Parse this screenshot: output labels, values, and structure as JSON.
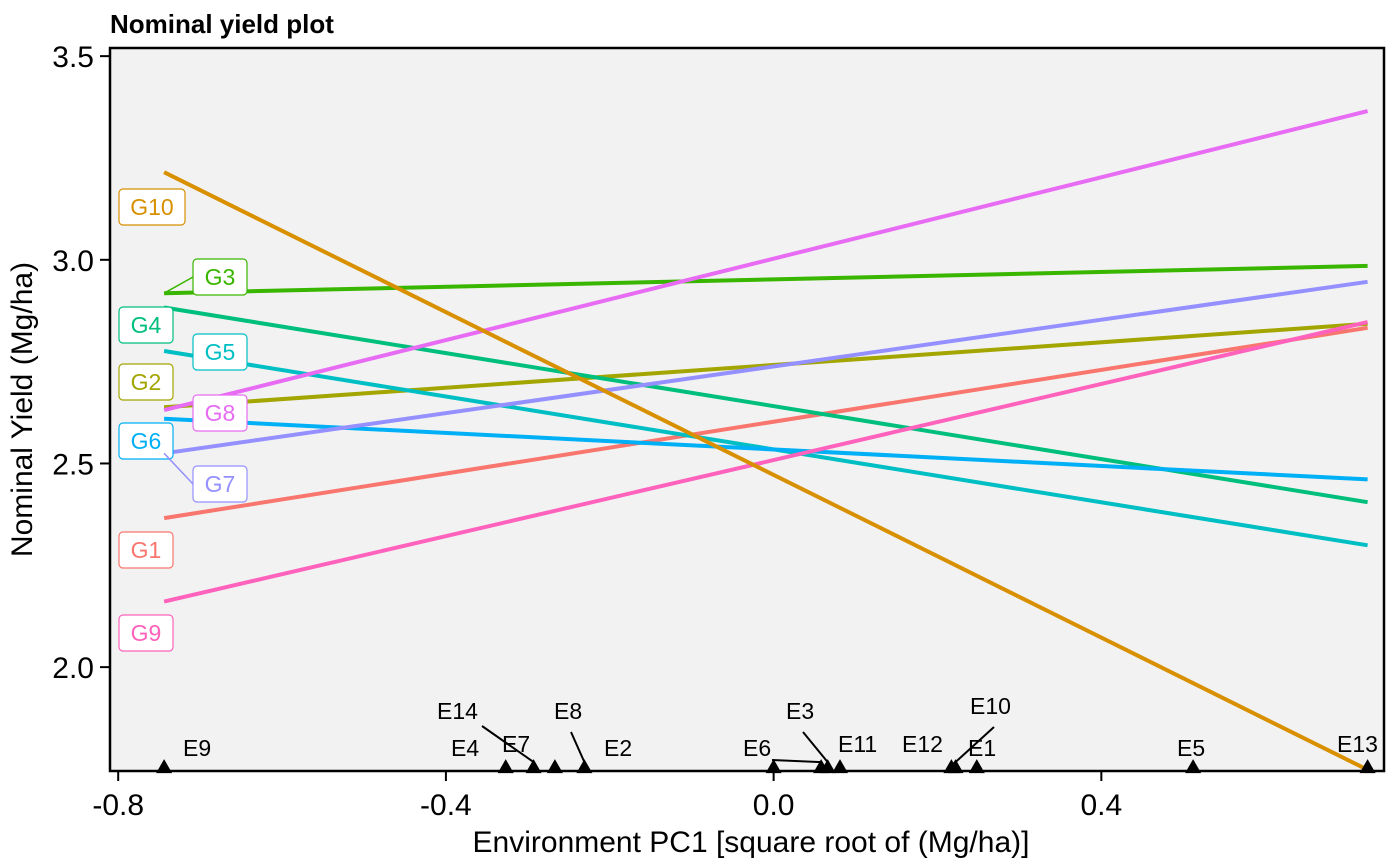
{
  "chart_data": {
    "type": "line",
    "title": "Nominal yield plot",
    "xlabel": "Environment PC1 [square root of  (Mg/ha)]",
    "ylabel": "Nominal Yield (Mg/ha)",
    "xlim": [
      -0.81,
      0.745
    ],
    "ylim": [
      1.745,
      3.52
    ],
    "x_ticks": [
      -0.8,
      -0.4,
      0.0,
      0.4
    ],
    "x_tick_labels": [
      "-0.8",
      "-0.4",
      "0.0",
      "0.4"
    ],
    "y_ticks": [
      2.0,
      2.5,
      3.0,
      3.5
    ],
    "y_tick_labels": [
      "2.0",
      "2.5",
      "3.0",
      "3.5"
    ],
    "grid": false,
    "series": [
      {
        "name": "G1",
        "color": "#F8766D",
        "x": [
          -0.744,
          0.725
        ],
        "y": [
          2.366,
          2.833
        ]
      },
      {
        "name": "G2",
        "color": "#A3A500",
        "x": [
          -0.744,
          0.725
        ],
        "y": [
          2.638,
          2.843
        ]
      },
      {
        "name": "G3",
        "color": "#39B600",
        "x": [
          -0.744,
          0.725
        ],
        "y": [
          2.918,
          2.985
        ]
      },
      {
        "name": "G4",
        "color": "#00BF7D",
        "x": [
          -0.744,
          0.725
        ],
        "y": [
          2.883,
          2.405
        ]
      },
      {
        "name": "G5",
        "color": "#00BFC4",
        "x": [
          -0.744,
          0.725
        ],
        "y": [
          2.776,
          2.299
        ]
      },
      {
        "name": "G6",
        "color": "#00B0F6",
        "x": [
          -0.744,
          0.725
        ],
        "y": [
          2.61,
          2.461
        ]
      },
      {
        "name": "G7",
        "color": "#9590FF",
        "x": [
          -0.744,
          0.725
        ],
        "y": [
          2.525,
          2.946
        ]
      },
      {
        "name": "G8",
        "color": "#E76BF3",
        "x": [
          -0.744,
          0.725
        ],
        "y": [
          2.631,
          3.365
        ]
      },
      {
        "name": "G9",
        "color": "#FF62BC",
        "x": [
          -0.744,
          0.725
        ],
        "y": [
          2.161,
          2.847
        ]
      },
      {
        "name": "G10",
        "color": "#D89000",
        "x": [
          -0.744,
          0.725
        ],
        "y": [
          3.215,
          1.748
        ]
      }
    ],
    "environments": [
      {
        "name": "E9",
        "x": -0.744
      },
      {
        "name": "E4",
        "x": -0.327
      },
      {
        "name": "E14",
        "x": -0.293
      },
      {
        "name": "E7",
        "x": -0.267
      },
      {
        "name": "E8",
        "x": -0.231
      },
      {
        "name": "E2",
        "x": 0.0
      },
      {
        "name": "E6",
        "x": 0.058
      },
      {
        "name": "E3",
        "x": 0.066
      },
      {
        "name": "E11",
        "x": 0.081
      },
      {
        "name": "E12",
        "x": 0.217
      },
      {
        "name": "E10",
        "x": 0.222
      },
      {
        "name": "E1",
        "x": 0.248
      },
      {
        "name": "E5",
        "x": 0.512
      },
      {
        "name": "E13",
        "x": 0.725
      }
    ]
  }
}
